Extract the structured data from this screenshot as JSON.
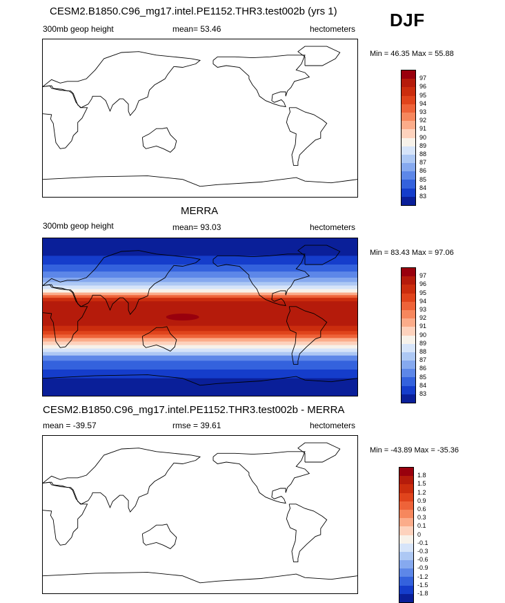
{
  "season": "DJF",
  "panels": [
    {
      "title": "CESM2.B1850.C96_mg17.intel.PE1152.THR3.test002b (yrs 1)",
      "left_label": "300mb geop height",
      "center_label": "mean=  53.46",
      "right_label": "hectometers",
      "minmax": "Min =  46.35 Max =  55.88",
      "filled": false
    },
    {
      "title": "MERRA",
      "left_label": "300mb geop height",
      "center_label": "mean=  93.03",
      "right_label": "hectometers",
      "minmax": "Min =  83.43 Max =  97.06",
      "filled": true
    },
    {
      "title": "CESM2.B1850.C96_mg17.intel.PE1152.THR3.test002b - MERRA",
      "left_label": "mean = -39.57",
      "center_label": "rmse =  39.61",
      "right_label": "hectometers",
      "minmax": "Min = -43.89 Max = -35.36",
      "filled": false
    }
  ],
  "colorbars": [
    {
      "labels": [
        "97",
        "96",
        "95",
        "94",
        "93",
        "92",
        "91",
        "90",
        "89",
        "88",
        "87",
        "86",
        "85",
        "84",
        "83"
      ]
    },
    {
      "labels": [
        "97",
        "96",
        "95",
        "94",
        "93",
        "92",
        "91",
        "90",
        "89",
        "88",
        "87",
        "86",
        "85",
        "84",
        "83"
      ]
    },
    {
      "labels": [
        "1.8",
        "1.5",
        "1.2",
        "0.9",
        "0.6",
        "0.3",
        "0.1",
        "0",
        "-0.1",
        "-0.3",
        "-0.6",
        "-0.9",
        "-1.2",
        "-1.5",
        "-1.8"
      ]
    }
  ],
  "palette": [
    "#99000d",
    "#b51b0b",
    "#cb2d0e",
    "#e0441c",
    "#ee6339",
    "#f6875d",
    "#fbac8a",
    "#fdd2bd",
    "#f7f2ea",
    "#d6e4f9",
    "#adc8f4",
    "#86a9ef",
    "#5d87e8",
    "#3462dd",
    "#153dcb",
    "#0a1f99"
  ],
  "chart_data": {
    "type": "heatmap",
    "plots": [
      {
        "name": "CESM2.B1850.C96_mg17.intel.PE1152.THR3.test002b (yrs 1)",
        "variable": "300mb geop height",
        "units": "hectometers",
        "mean": 53.46,
        "min": 46.35,
        "max": 55.88,
        "levels": [
          83,
          84,
          85,
          86,
          87,
          88,
          89,
          90,
          91,
          92,
          93,
          94,
          95,
          96,
          97
        ]
      },
      {
        "name": "MERRA",
        "variable": "300mb geop height",
        "units": "hectometers",
        "mean": 93.03,
        "min": 83.43,
        "max": 97.06,
        "levels": [
          83,
          84,
          85,
          86,
          87,
          88,
          89,
          90,
          91,
          92,
          93,
          94,
          95,
          96,
          97
        ]
      },
      {
        "name": "CESM2.B1850.C96_mg17.intel.PE1152.THR3.test002b - MERRA",
        "units": "hectometers",
        "mean": -39.57,
        "rmse": 39.61,
        "min": -43.89,
        "max": -35.36,
        "levels": [
          -1.8,
          -1.5,
          -1.2,
          -0.9,
          -0.6,
          -0.3,
          -0.1,
          0,
          0.1,
          0.3,
          0.6,
          0.9,
          1.2,
          1.5,
          1.8
        ]
      }
    ]
  }
}
